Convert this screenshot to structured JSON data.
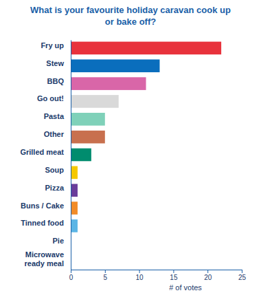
{
  "chart_data": {
    "type": "bar",
    "orientation": "horizontal",
    "title": "What is your favourite holiday caravan cook up or bake off?",
    "categories": [
      "Fry up",
      "Stew",
      "BBQ",
      "Go out!",
      "Pasta",
      "Other",
      "Grilled meat",
      "Soup",
      "Pizza",
      "Buns / Cake",
      "Tinned food",
      "Pie",
      "Microwave ready meal"
    ],
    "values": [
      22,
      13,
      11,
      7,
      5,
      5,
      3,
      1,
      1,
      1,
      1,
      0,
      0
    ],
    "colors": [
      "#e8323c",
      "#0a6ebd",
      "#d966a8",
      "#d9d9d9",
      "#7fd1b9",
      "#c8704e",
      "#008c6e",
      "#f5c800",
      "#6a3d9a",
      "#f28c28",
      "#5bb5e5",
      "#1a1a1a",
      "#808080"
    ],
    "xlabel": "# of votes",
    "xlim": [
      0,
      25
    ],
    "xticks": [
      0,
      5,
      10,
      15,
      20,
      25
    ],
    "grid": false
  }
}
